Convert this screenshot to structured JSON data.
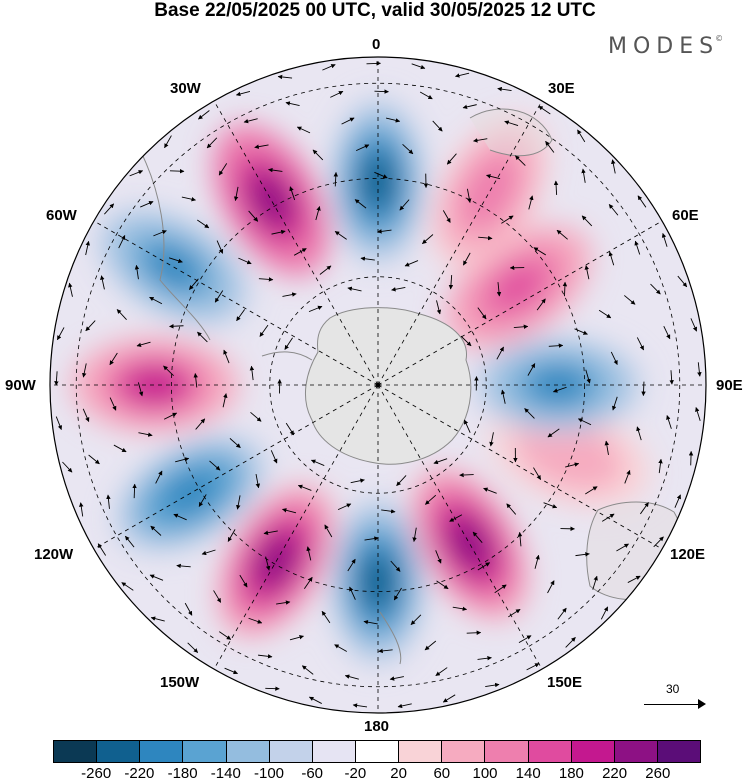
{
  "title": "Base 22/05/2025 00 UTC, valid 30/05/2025 12 UTC",
  "brand": "MODES",
  "brand_mark": "©",
  "longitude_labels": {
    "n0": "0",
    "n30e": "30E",
    "n60e": "60E",
    "n90e": "90E",
    "n120e": "120E",
    "n150e": "150E",
    "n180": "180",
    "n150w": "150W",
    "n120w": "120W",
    "n90w": "90W",
    "n60w": "60W",
    "n30w": "30W"
  },
  "vector_scale": "30",
  "colorbar": {
    "colors": [
      "#0b3954",
      "#10608f",
      "#2e86bf",
      "#5aa3d2",
      "#94bddf",
      "#c3d2ea",
      "#e6e4f3",
      "#ffffff",
      "#f9d3d7",
      "#f6abc0",
      "#ee7fae",
      "#e04b9f",
      "#c4188f",
      "#8d1184",
      "#5b0d78"
    ],
    "ticks": [
      "-260",
      "-220",
      "-180",
      "-140",
      "-100",
      "-60",
      "-20",
      "20",
      "60",
      "100",
      "140",
      "180",
      "220",
      "260"
    ]
  },
  "anomaly_cells": [
    {
      "lon": 0,
      "colat": 0.62,
      "value": -240
    },
    {
      "lon": -30,
      "colat": 0.65,
      "value": 250
    },
    {
      "lon": -60,
      "colat": 0.72,
      "value": -190
    },
    {
      "lon": -90,
      "colat": 0.68,
      "value": 180
    },
    {
      "lon": -120,
      "colat": 0.66,
      "value": -210
    },
    {
      "lon": -150,
      "colat": 0.62,
      "value": 220
    },
    {
      "lon": 180,
      "colat": 0.6,
      "value": -230
    },
    {
      "lon": 150,
      "colat": 0.56,
      "value": 240
    },
    {
      "lon": 110,
      "colat": 0.62,
      "value": 90
    },
    {
      "lon": 90,
      "colat": 0.55,
      "value": -200
    },
    {
      "lon": 55,
      "colat": 0.52,
      "value": 160
    },
    {
      "lon": 30,
      "colat": 0.68,
      "value": 130
    }
  ]
}
